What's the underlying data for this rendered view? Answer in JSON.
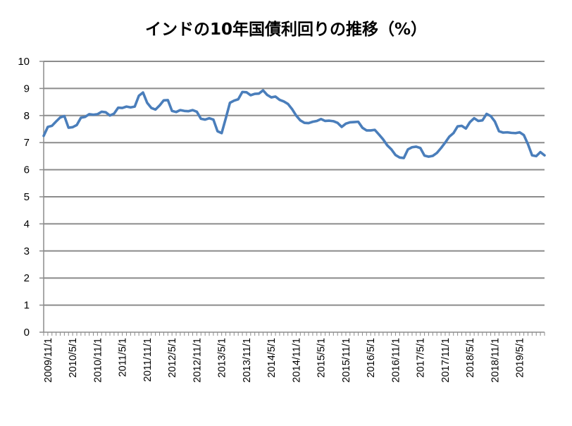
{
  "chart_data": {
    "type": "line",
    "title": "インドの10年国債利回りの推移（%）",
    "xlabel": "",
    "ylabel": "",
    "ylim": [
      0,
      10
    ],
    "yticks": [
      0,
      1,
      2,
      3,
      4,
      5,
      6,
      7,
      8,
      9,
      10
    ],
    "grid": true,
    "legend": "none",
    "x_tick_labels": [
      "2009/11/1",
      "2010/5/1",
      "2010/11/1",
      "2011/5/1",
      "2011/11/1",
      "2012/5/1",
      "2012/11/1",
      "2013/5/1",
      "2013/11/1",
      "2014/5/1",
      "2014/11/1",
      "2015/5/1",
      "2015/11/1",
      "2016/5/1",
      "2016/11/1",
      "2017/5/1",
      "2017/11/1",
      "2018/5/1",
      "2018/11/1",
      "2019/5/1"
    ],
    "series": [
      {
        "color": "#4a7ebb",
        "x": [
          "2009/10",
          "2009/11",
          "2009/12",
          "2010/1",
          "2010/2",
          "2010/3",
          "2010/4",
          "2010/5",
          "2010/6",
          "2010/7",
          "2010/8",
          "2010/9",
          "2010/10",
          "2010/11",
          "2010/12",
          "2011/1",
          "2011/2",
          "2011/3",
          "2011/4",
          "2011/5",
          "2011/6",
          "2011/7",
          "2011/8",
          "2011/9",
          "2011/10",
          "2011/11",
          "2011/12",
          "2012/1",
          "2012/2",
          "2012/3",
          "2012/4",
          "2012/5",
          "2012/6",
          "2012/7",
          "2012/8",
          "2012/9",
          "2012/10",
          "2012/11",
          "2012/12",
          "2013/1",
          "2013/2",
          "2013/3",
          "2013/4",
          "2013/5",
          "2013/6",
          "2013/7",
          "2013/8",
          "2013/9",
          "2013/10",
          "2013/11",
          "2013/12",
          "2014/1",
          "2014/2",
          "2014/3",
          "2014/4",
          "2014/5",
          "2014/6",
          "2014/7",
          "2014/8",
          "2014/9",
          "2014/10",
          "2014/11",
          "2014/12",
          "2015/1",
          "2015/2",
          "2015/3",
          "2015/4",
          "2015/5",
          "2015/6",
          "2015/7",
          "2015/8",
          "2015/9",
          "2015/10",
          "2015/11",
          "2015/12",
          "2016/1",
          "2016/2",
          "2016/3",
          "2016/4",
          "2016/5",
          "2016/6",
          "2016/7",
          "2016/8",
          "2016/9",
          "2016/10",
          "2016/11",
          "2016/12",
          "2017/1",
          "2017/2",
          "2017/3",
          "2017/4",
          "2017/5",
          "2017/6",
          "2017/7",
          "2017/8",
          "2017/9",
          "2017/10",
          "2017/11",
          "2017/12",
          "2018/1",
          "2018/2",
          "2018/3",
          "2018/4",
          "2018/5",
          "2018/6",
          "2018/7",
          "2018/8",
          "2018/9",
          "2018/10",
          "2018/11",
          "2018/12",
          "2019/1",
          "2019/2",
          "2019/3",
          "2019/4",
          "2019/5",
          "2019/6",
          "2019/7",
          "2019/8",
          "2019/9",
          "2019/10",
          "2019/11"
        ],
        "values": [
          7.25,
          7.58,
          7.62,
          7.78,
          7.93,
          7.98,
          7.55,
          7.57,
          7.65,
          7.92,
          7.95,
          8.05,
          8.03,
          8.05,
          8.14,
          8.12,
          8.0,
          8.07,
          8.29,
          8.28,
          8.33,
          8.3,
          8.33,
          8.73,
          8.85,
          8.47,
          8.28,
          8.22,
          8.37,
          8.56,
          8.57,
          8.17,
          8.13,
          8.2,
          8.17,
          8.16,
          8.2,
          8.14,
          7.88,
          7.85,
          7.9,
          7.85,
          7.42,
          7.35,
          7.9,
          8.47,
          8.55,
          8.6,
          8.87,
          8.86,
          8.75,
          8.8,
          8.81,
          8.93,
          8.76,
          8.67,
          8.7,
          8.58,
          8.52,
          8.43,
          8.24,
          8.0,
          7.82,
          7.73,
          7.72,
          7.77,
          7.8,
          7.87,
          7.8,
          7.81,
          7.79,
          7.73,
          7.58,
          7.7,
          7.75,
          7.76,
          7.77,
          7.55,
          7.45,
          7.45,
          7.47,
          7.3,
          7.12,
          6.9,
          6.75,
          6.54,
          6.45,
          6.43,
          6.75,
          6.83,
          6.85,
          6.8,
          6.52,
          6.48,
          6.51,
          6.62,
          6.8,
          7.0,
          7.22,
          7.35,
          7.6,
          7.62,
          7.52,
          7.76,
          7.9,
          7.8,
          7.82,
          8.06,
          7.98,
          7.78,
          7.42,
          7.37,
          7.38,
          7.36,
          7.35,
          7.38,
          7.28,
          6.94,
          6.53,
          6.5,
          6.65,
          6.53
        ]
      }
    ]
  }
}
